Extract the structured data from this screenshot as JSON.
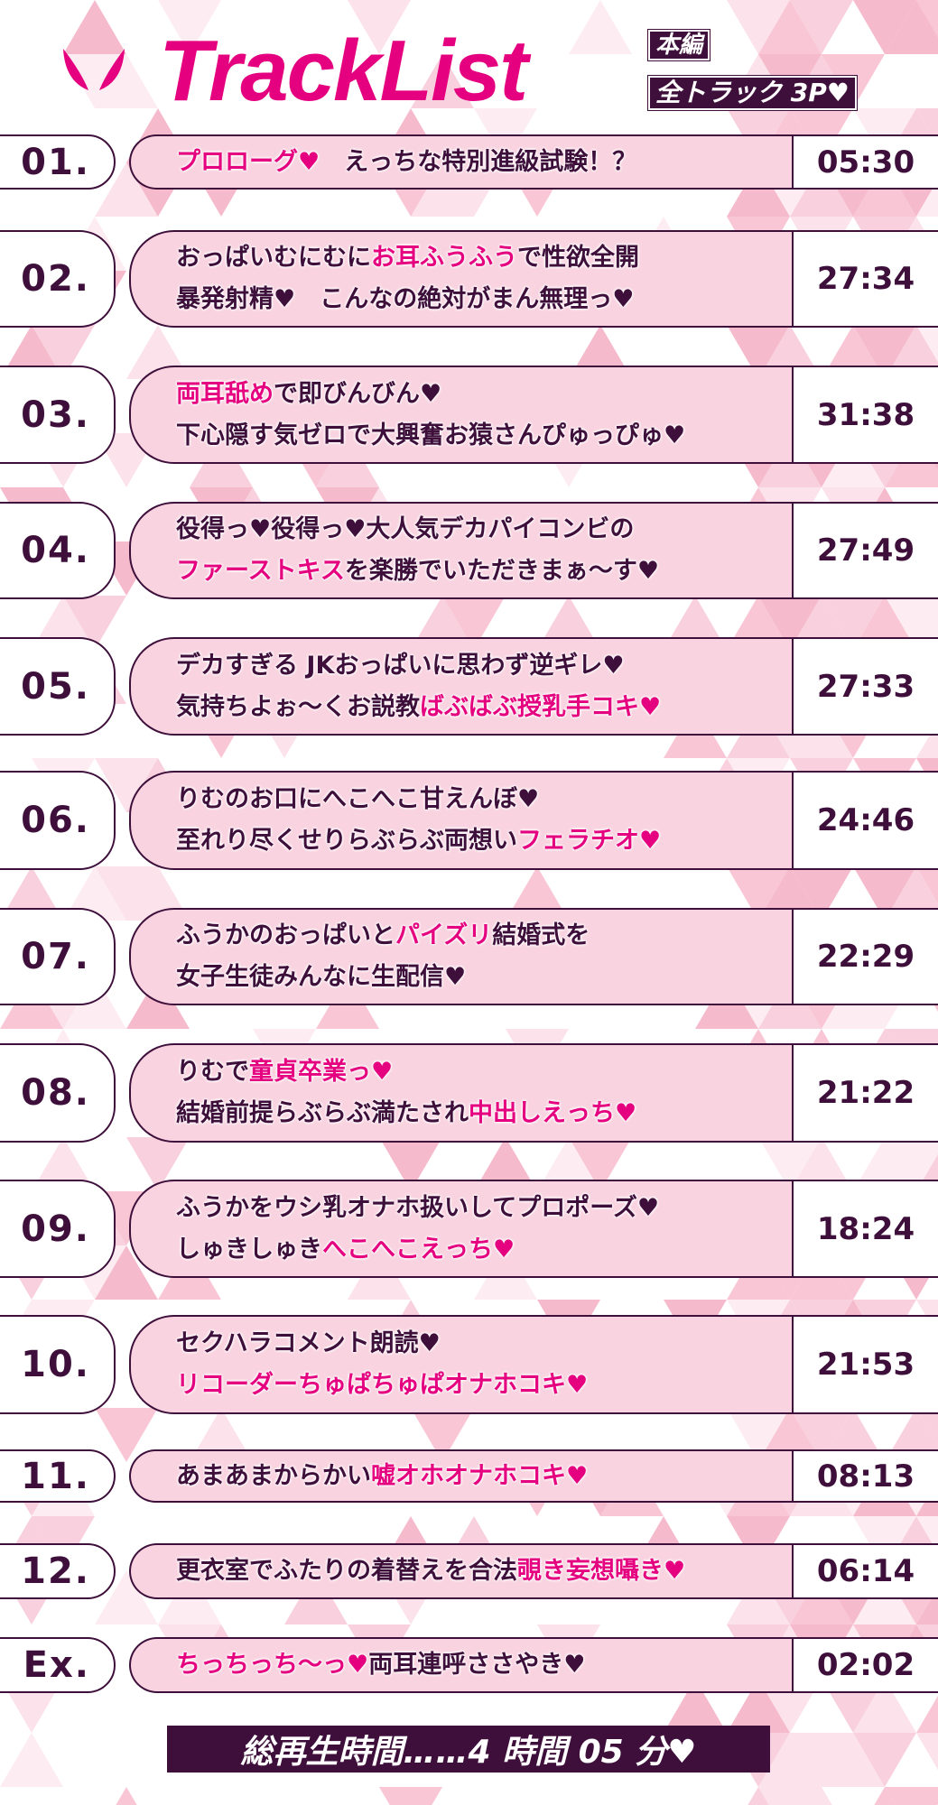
{
  "header": {
    "title": "TrackList",
    "badge_main": "本編",
    "badge_tracks": "全トラック 3P♥"
  },
  "colors": {
    "accent": "#e4007f",
    "dark": "#3d0f3a",
    "pill": "#f9d3e0"
  },
  "tracks": [
    {
      "num": "01.",
      "time": "05:30",
      "lines": [
        [
          {
            "t": "プロローグ♥",
            "hl": true
          },
          {
            "t": "　えっちな特別進級試験！？",
            "hl": false
          }
        ]
      ]
    },
    {
      "num": "02.",
      "time": "27:34",
      "lines": [
        [
          {
            "t": "おっぱいむにむに",
            "hl": false
          },
          {
            "t": "お耳ふうふう",
            "hl": true
          },
          {
            "t": "で性欲全開",
            "hl": false
          }
        ],
        [
          {
            "t": "暴発射精♥　こんなの絶対がまん無理っ♥",
            "hl": false
          }
        ]
      ]
    },
    {
      "num": "03.",
      "time": "31:38",
      "lines": [
        [
          {
            "t": "両耳舐め",
            "hl": true
          },
          {
            "t": "で即びんびん♥",
            "hl": false
          }
        ],
        [
          {
            "t": "下心隠す気ゼロで大興奮お猿さんぴゅっぴゅ♥",
            "hl": false
          }
        ]
      ]
    },
    {
      "num": "04.",
      "time": "27:49",
      "lines": [
        [
          {
            "t": "役得っ♥役得っ♥大人気デカパイコンビの",
            "hl": false
          }
        ],
        [
          {
            "t": "ファーストキス",
            "hl": true
          },
          {
            "t": "を楽勝でいただきまぁ～す♥",
            "hl": false
          }
        ]
      ]
    },
    {
      "num": "05.",
      "time": "27:33",
      "lines": [
        [
          {
            "t": "デカすぎる JKおっぱいに思わず逆ギレ♥",
            "hl": false
          }
        ],
        [
          {
            "t": "気持ちよぉ～くお説教",
            "hl": false
          },
          {
            "t": "ばぶばぶ授乳手コキ♥",
            "hl": true
          }
        ]
      ]
    },
    {
      "num": "06.",
      "time": "24:46",
      "lines": [
        [
          {
            "t": "りむのお口にへこへこ甘えんぼ♥",
            "hl": false
          }
        ],
        [
          {
            "t": "至れり尽くせりらぶらぶ両想い",
            "hl": false
          },
          {
            "t": "フェラチオ♥",
            "hl": true
          }
        ]
      ]
    },
    {
      "num": "07.",
      "time": "22:29",
      "lines": [
        [
          {
            "t": "ふうかのおっぱいと",
            "hl": false
          },
          {
            "t": "パイズリ",
            "hl": true
          },
          {
            "t": "結婚式を",
            "hl": false
          }
        ],
        [
          {
            "t": "女子生徒みんなに生配信♥",
            "hl": false
          }
        ]
      ]
    },
    {
      "num": "08.",
      "time": "21:22",
      "lines": [
        [
          {
            "t": "りむで",
            "hl": false
          },
          {
            "t": "童貞卒業っ♥",
            "hl": true
          }
        ],
        [
          {
            "t": "結婚前提らぶらぶ満たされ",
            "hl": false
          },
          {
            "t": "中出しえっち♥",
            "hl": true
          }
        ]
      ]
    },
    {
      "num": "09.",
      "time": "18:24",
      "lines": [
        [
          {
            "t": "ふうかをウシ乳オナホ扱いしてプロポーズ♥",
            "hl": false
          }
        ],
        [
          {
            "t": "しゅきしゅき",
            "hl": false
          },
          {
            "t": "へこへこえっち♥",
            "hl": true
          }
        ]
      ]
    },
    {
      "num": "10.",
      "time": "21:53",
      "lines": [
        [
          {
            "t": "セクハラコメント朗読♥",
            "hl": false
          }
        ],
        [
          {
            "t": "リコーダーちゅぱちゅぱオナホコキ♥",
            "hl": true
          }
        ]
      ]
    },
    {
      "num": "11.",
      "time": "08:13",
      "lines": [
        [
          {
            "t": "あまあまからかい",
            "hl": false
          },
          {
            "t": "嘘オホオナホコキ♥",
            "hl": true
          }
        ]
      ]
    },
    {
      "num": "12.",
      "time": "06:14",
      "lines": [
        [
          {
            "t": "更衣室でふたりの着替えを合法",
            "hl": false
          },
          {
            "t": "覗き妄想囁き♥",
            "hl": true
          }
        ]
      ]
    },
    {
      "num": "Ex.",
      "time": "02:02",
      "lines": [
        [
          {
            "t": "ちっちっち～っ♥",
            "hl": true
          },
          {
            "t": "両耳連呼ささやき♥",
            "hl": false
          }
        ]
      ]
    }
  ],
  "footer": {
    "total": "総再生時間……4 時間 05 分♥"
  }
}
